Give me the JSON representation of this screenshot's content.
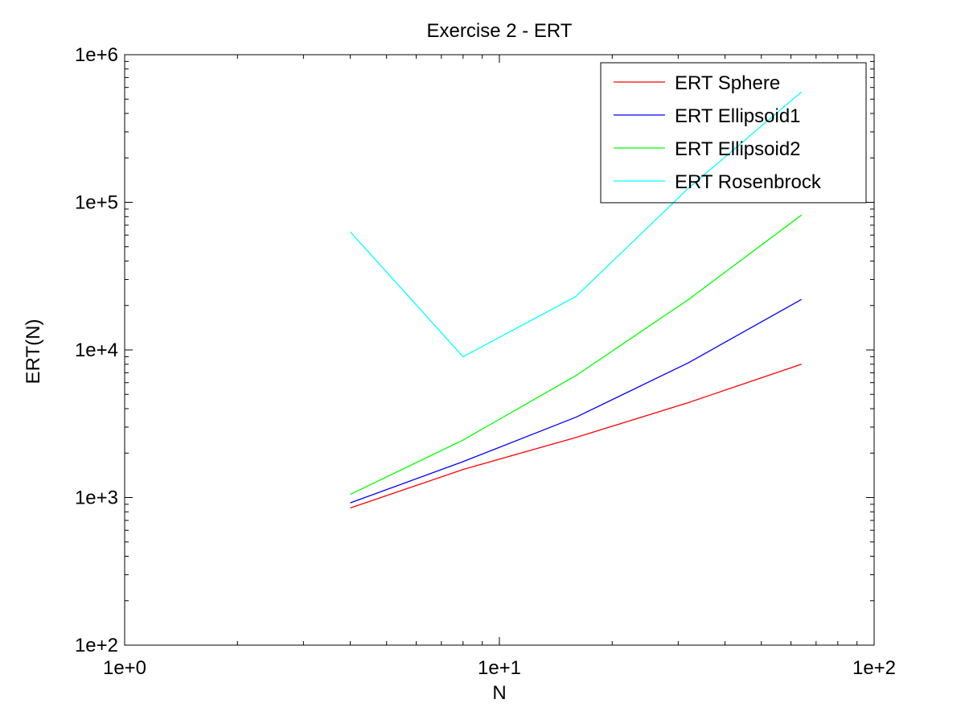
{
  "chart_data": {
    "type": "line",
    "title": "Exercise 2 - ERT",
    "xlabel": "N",
    "ylabel": "ERT(N)",
    "x_scale": "log",
    "y_scale": "log",
    "xlim": [
      1,
      100
    ],
    "ylim": [
      100,
      1000000
    ],
    "x_ticks": [
      {
        "value": 1,
        "label": "1e+0"
      },
      {
        "value": 10,
        "label": "1e+1"
      },
      {
        "value": 100,
        "label": "1e+2"
      }
    ],
    "y_ticks": [
      {
        "value": 100,
        "label": "1e+2"
      },
      {
        "value": 1000,
        "label": "1e+3"
      },
      {
        "value": 10000,
        "label": "1e+4"
      },
      {
        "value": 100000,
        "label": "1e+5"
      },
      {
        "value": 1000000,
        "label": "1e+6"
      }
    ],
    "grid": false,
    "legend_position": "top-right",
    "x": [
      4,
      8,
      16,
      32,
      64
    ],
    "series": [
      {
        "name": "ERT Sphere",
        "color": "#ff0000",
        "values": [
          850,
          1550,
          2550,
          4400,
          8000
        ]
      },
      {
        "name": "ERT Ellipsoid1",
        "color": "#0000ff",
        "values": [
          920,
          1750,
          3500,
          8200,
          22000
        ]
      },
      {
        "name": "ERT Ellipsoid2",
        "color": "#00ff00",
        "values": [
          1050,
          2450,
          6700,
          22000,
          82000
        ]
      },
      {
        "name": "ERT Rosenbrock",
        "color": "#00ffff",
        "values": [
          63000,
          9000,
          23000,
          125000,
          560000
        ]
      }
    ]
  }
}
